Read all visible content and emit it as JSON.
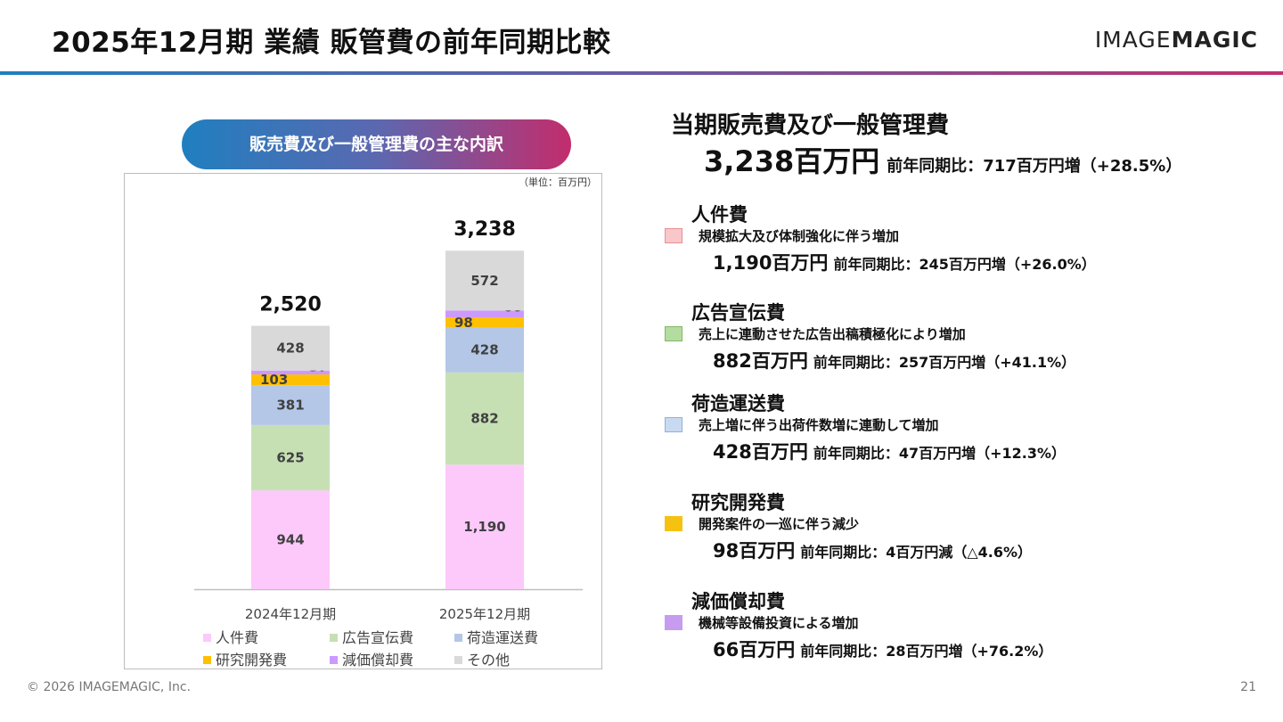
{
  "header": {
    "title": "2025年12月期 業績 販管費の前年同期比較",
    "logo_left": "IMAGE",
    "logo_right": "MAGIC"
  },
  "pill_label": "販売費及び一般管理費の主な内訳",
  "summary": {
    "title": "当期販売費及び一般管理費",
    "total": "3,238百万円",
    "yoy": "前年同期比：717百万円増（+28.5%）"
  },
  "categories": [
    {
      "name": "人件費",
      "desc": "規模拡大及び体制強化に伴う増加",
      "amount": "1,190百万円",
      "yoy": "前年同期比：245百万円増（+26.0%）",
      "color": "#f7c7c9",
      "border": "#e88f95"
    },
    {
      "name": "広告宣伝費",
      "desc": "売上に連動させた広告出稿積極化により増加",
      "amount": "882百万円",
      "yoy": "前年同期比：257百万円増（+41.1%）",
      "color": "#b5dca0",
      "border": "#7fb865"
    },
    {
      "name": "荷造運送費",
      "desc": "売上増に伴う出荷件数増に連動して増加",
      "amount": "428百万円",
      "yoy": "前年同期比：47百万円増（+12.3%）",
      "color": "#c8daf2",
      "border": "#8fb1db"
    },
    {
      "name": "研究開発費",
      "desc": "開発案件の一巡に伴う減少",
      "amount": "98百万円",
      "yoy": "前年同期比：4百万円減（△4.6%）",
      "color": "#f5c211",
      "border": "#f5c211"
    },
    {
      "name": "減価償却費",
      "desc": "機械等設備投資による増加",
      "amount": "66百万円",
      "yoy": "前年同期比：28百万円増（+76.2%）",
      "color": "#c79bef",
      "border": "#c79bef"
    }
  ],
  "chart_data": {
    "type": "bar",
    "stacked": true,
    "unit_label": "（単位：百万円）",
    "categories": [
      "2024年12月期",
      "2025年12月期"
    ],
    "totals": [
      "2,520",
      "3,238"
    ],
    "series": [
      {
        "name": "人件費",
        "values": [
          944,
          1190
        ],
        "labels": [
          "944",
          "1,190"
        ],
        "color": "#fdc9fa"
      },
      {
        "name": "広告宣伝費",
        "values": [
          625,
          882
        ],
        "labels": [
          "625",
          "882"
        ],
        "color": "#c6e0b4"
      },
      {
        "name": "荷造運送費",
        "values": [
          381,
          428
        ],
        "labels": [
          "381",
          "428"
        ],
        "color": "#b4c7e7"
      },
      {
        "name": "研究開発費",
        "values": [
          103,
          98
        ],
        "labels": [
          "103",
          "98"
        ],
        "color": "#ffc000"
      },
      {
        "name": "減価償却費",
        "values": [
          37,
          66
        ],
        "labels": [
          "37",
          "66"
        ],
        "color": "#cc99ff"
      },
      {
        "name": "その他",
        "values": [
          428,
          572
        ],
        "labels": [
          "428",
          "572"
        ],
        "color": "#d9d9d9"
      }
    ],
    "legend_position": "bottom",
    "grid": false
  },
  "footer": {
    "copyright": "© 2026 IMAGEMAGIC, Inc.",
    "page": "21"
  }
}
